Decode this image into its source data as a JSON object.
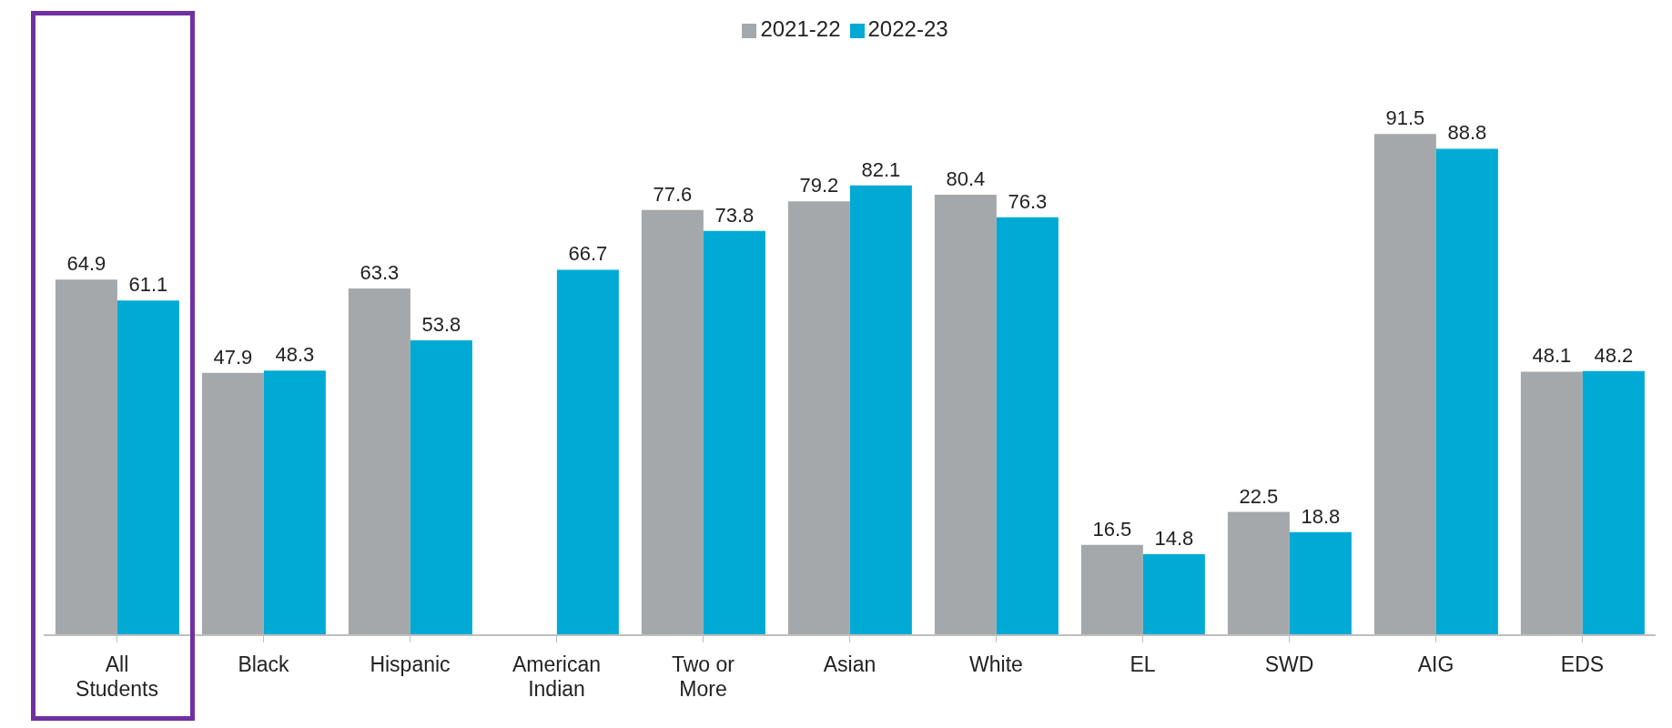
{
  "chart_data": {
    "type": "bar",
    "categories": [
      "All Students",
      "Black",
      "Hispanic",
      "American Indian",
      "Two or More",
      "Asian",
      "White",
      "EL",
      "SWD",
      "AIG",
      "EDS"
    ],
    "series": [
      {
        "name": "2021-22",
        "color": "#a5a8ab",
        "values": [
          64.9,
          47.9,
          63.3,
          null,
          77.6,
          79.2,
          80.4,
          16.5,
          22.5,
          91.5,
          48.1
        ]
      },
      {
        "name": "2022-23",
        "color": "#00aad4",
        "values": [
          61.1,
          48.3,
          53.8,
          66.7,
          73.8,
          82.1,
          76.3,
          14.8,
          18.8,
          88.8,
          48.2
        ]
      }
    ],
    "data_labels": true,
    "legend": "top",
    "grid": false,
    "tick_labels": "x"
  }
}
